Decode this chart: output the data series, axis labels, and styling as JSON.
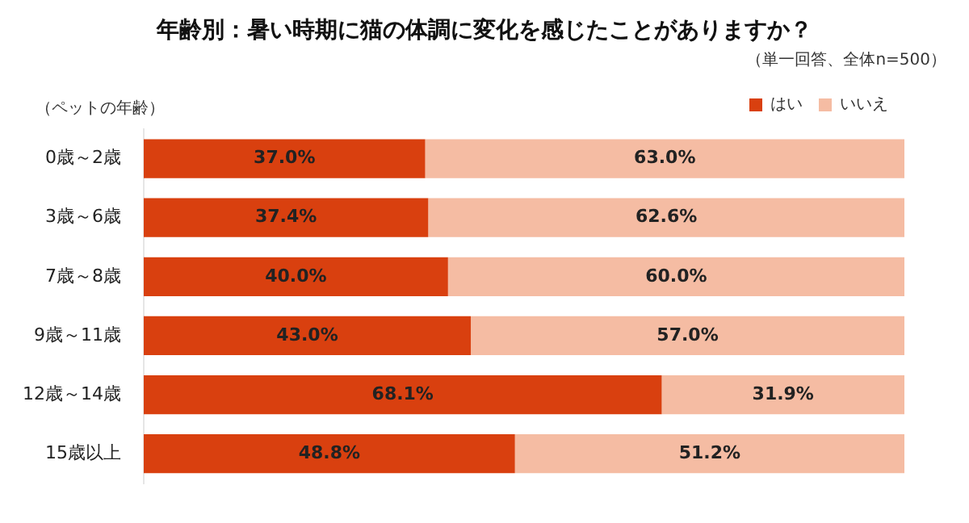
{
  "chart_data": {
    "type": "bar",
    "orientation": "horizontal",
    "stacked": true,
    "title": "年齢別：暑い時期に猫の体調に変化を感じたことがありますか？",
    "subtitle": "（単一回答、全体n=500）",
    "ylabel": "（ペットの年齢）",
    "categories": [
      "0歳～2歳",
      "3歳～6歳",
      "7歳～8歳",
      "9歳～11歳",
      "12歳～14歳",
      "15歳以上"
    ],
    "xlim": [
      0,
      100
    ],
    "tick_labels": "y",
    "grid": false,
    "legend": "top right",
    "series": [
      {
        "name": "はい",
        "color": "#d9400f",
        "values": [
          37.0,
          37.4,
          40.0,
          43.0,
          68.1,
          48.8
        ],
        "value_labels": [
          "37.0%",
          "37.4%",
          "40.0%",
          "43.0%",
          "68.1%",
          "48.8%"
        ]
      },
      {
        "name": "いいえ",
        "color": "#f5bca3",
        "values": [
          63.0,
          62.6,
          60.0,
          57.0,
          31.9,
          51.2
        ],
        "value_labels": [
          "63.0%",
          "62.6%",
          "60.0%",
          "57.0%",
          "31.9%",
          "51.2%"
        ]
      }
    ]
  }
}
